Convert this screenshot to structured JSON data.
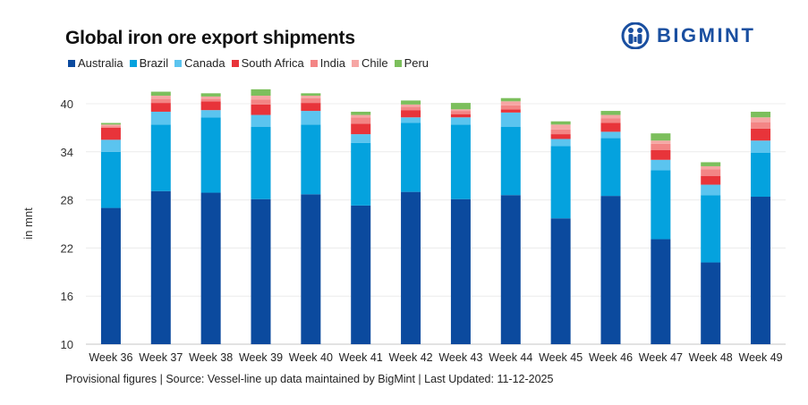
{
  "header": {
    "title": "Global iron ore export shipments",
    "logo_text": "BIGMINT",
    "logo_color": "#1a4fa0"
  },
  "footer": {
    "text": "Provisional figures | Source: Vessel-line up data maintained by BigMint | Last Updated: 11-12-2025"
  },
  "chart_data": {
    "type": "bar",
    "stacked": true,
    "title": "Global iron ore export shipments",
    "xlabel": "",
    "ylabel": "in mnt",
    "ylim": [
      10,
      40
    ],
    "yticks": [
      10,
      16,
      22,
      28,
      34,
      40
    ],
    "grid": true,
    "legend_position": "top-left",
    "categories": [
      "Week 36",
      "Week 37",
      "Week 38",
      "Week 39",
      "Week 40",
      "Week 41",
      "Week 42",
      "Week 43",
      "Week 44",
      "Week 45",
      "Week 46",
      "Week 47",
      "Week 48",
      "Week 49"
    ],
    "series": [
      {
        "name": "Australia",
        "color": "#0b4a9e",
        "values": [
          17.0,
          19.1,
          18.9,
          18.1,
          18.7,
          17.3,
          19.0,
          18.1,
          18.6,
          15.7,
          18.5,
          13.1,
          10.2,
          18.4
        ]
      },
      {
        "name": "Brazil",
        "color": "#04a2de",
        "values": [
          7.0,
          8.3,
          9.4,
          9.0,
          8.7,
          7.8,
          8.6,
          9.3,
          8.5,
          9.0,
          7.2,
          8.6,
          8.4,
          5.5
        ]
      },
      {
        "name": "Canada",
        "color": "#5bc4ef",
        "values": [
          1.5,
          1.6,
          0.9,
          1.5,
          1.7,
          1.1,
          0.7,
          0.9,
          1.8,
          0.9,
          0.8,
          1.3,
          1.3,
          1.5
        ]
      },
      {
        "name": "South Africa",
        "color": "#e8343a",
        "values": [
          1.5,
          1.1,
          1.1,
          1.3,
          1.0,
          1.3,
          0.9,
          0.4,
          0.4,
          0.6,
          1.1,
          1.2,
          1.1,
          1.5
        ]
      },
      {
        "name": "India",
        "color": "#f38585",
        "values": [
          0.2,
          0.5,
          0.3,
          0.6,
          0.6,
          0.8,
          0.4,
          0.4,
          0.5,
          0.6,
          0.6,
          0.8,
          0.8,
          0.8
        ]
      },
      {
        "name": "Chile",
        "color": "#f6a6a4",
        "values": [
          0.2,
          0.4,
          0.3,
          0.5,
          0.3,
          0.3,
          0.3,
          0.2,
          0.5,
          0.6,
          0.4,
          0.4,
          0.4,
          0.6
        ]
      },
      {
        "name": "Peru",
        "color": "#7cbf5c",
        "values": [
          0.2,
          0.5,
          0.4,
          0.8,
          0.3,
          0.4,
          0.5,
          0.8,
          0.4,
          0.4,
          0.5,
          0.9,
          0.5,
          0.7
        ]
      }
    ]
  }
}
